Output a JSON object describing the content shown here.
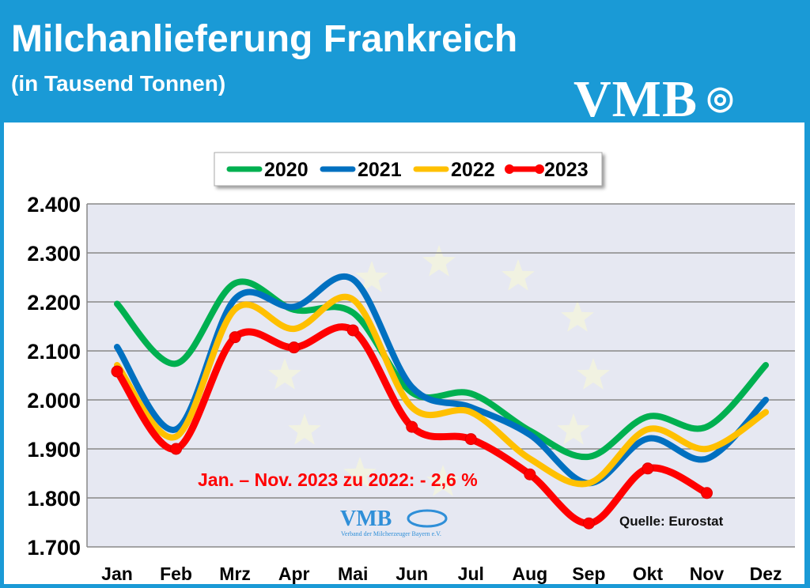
{
  "header": {
    "title": "Milchanlieferung Frankreich",
    "subtitle": "(in Tausend Tonnen)",
    "logo": "VMB"
  },
  "chart_data": {
    "type": "line",
    "title": "Milchanlieferung Frankreich",
    "subtitle": "(in Tausend Tonnen)",
    "categories": [
      "Jan",
      "Feb",
      "Mrz",
      "Apr",
      "Mai",
      "Jun",
      "Jul",
      "Aug",
      "Sep",
      "Okt",
      "Nov",
      "Dez"
    ],
    "ylim": [
      1700,
      2400
    ],
    "yticks": [
      "1.700",
      "1.800",
      "1.900",
      "2.000",
      "2.100",
      "2.200",
      "2.300",
      "2.400"
    ],
    "grid": true,
    "legend_position": "top-center",
    "series": [
      {
        "name": "2020",
        "color": "#00b050",
        "values": [
          2196,
          2074,
          2238,
          2184,
          2178,
          2015,
          2013,
          1937,
          1884,
          1966,
          1945,
          2071
        ],
        "markers": false
      },
      {
        "name": "2021",
        "color": "#0070c0",
        "values": [
          2108,
          1940,
          2206,
          2190,
          2246,
          2026,
          1985,
          1929,
          1830,
          1921,
          1880,
          2000
        ],
        "markers": false
      },
      {
        "name": "2022",
        "color": "#ffc000",
        "values": [
          2071,
          1925,
          2185,
          2145,
          2205,
          1985,
          1975,
          1880,
          1830,
          1940,
          1900,
          1975
        ],
        "markers": false
      },
      {
        "name": "2023",
        "color": "#ff0000",
        "values": [
          2058,
          1900,
          2128,
          2107,
          2142,
          1945,
          1920,
          1848,
          1748,
          1860,
          1810,
          null
        ],
        "markers": true
      }
    ],
    "annotations": [
      "Jan. – Nov. 2023 zu 2022:  - 2,6 %",
      "Quelle: Eurostat"
    ],
    "watermark_logo": {
      "text": "VMB",
      "caption": "Verband der Milcherzeuger Bayern e.V."
    }
  }
}
